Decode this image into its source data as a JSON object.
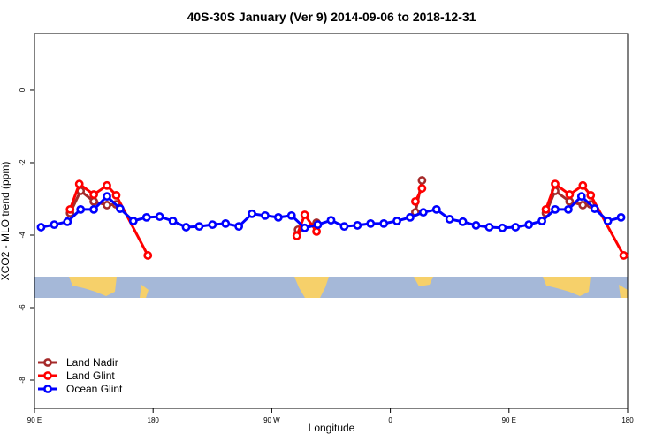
{
  "chart_data": {
    "type": "line",
    "title": "40S-30S January (Ver 9)   2014-09-06 to 2018-12-31",
    "x_label": "Longitude",
    "y_label": "XCO2 - MLO trend (ppm)",
    "xlim": [
      90,
      540
    ],
    "ylim": [
      -8.78,
      1.56
    ],
    "xticks": [
      {
        "value": 90,
        "label": "90 E"
      },
      180,
      {
        "value": 270,
        "label": "90 W"
      },
      {
        "value": 360,
        "label": "0"
      },
      {
        "value": 450,
        "label": "90 E"
      },
      {
        "value": 540,
        "label": "180"
      }
    ],
    "yticks": [
      0,
      -2,
      -4,
      -6,
      -8
    ],
    "legend": "bottom-left",
    "series": [
      {
        "name": "Land Nadir",
        "color": "#a52a2a",
        "x": [
          117,
          125,
          135,
          145,
          152,
          null,
          290,
          304,
          null,
          379,
          384,
          null,
          478,
          485,
          496,
          506,
          512
        ],
        "values": [
          -3.39,
          -2.78,
          -3.07,
          -3.17,
          -3.15,
          null,
          -3.85,
          -3.66,
          null,
          -3.37,
          -2.49,
          null,
          -3.39,
          -2.78,
          -3.07,
          -3.17,
          -3.15
        ]
      },
      {
        "name": "Land Glint",
        "color": "#ff0000",
        "x": [
          117,
          124,
          135,
          145,
          152,
          176,
          null,
          289,
          295,
          304,
          null,
          379,
          384,
          null,
          478,
          485,
          496,
          506,
          512,
          537
        ],
        "values": [
          -3.29,
          -2.59,
          -2.88,
          -2.63,
          -2.9,
          -4.56,
          null,
          -4.02,
          -3.44,
          -3.9,
          null,
          -3.07,
          -2.71,
          null,
          -3.29,
          -2.59,
          -2.88,
          -2.63,
          -2.9,
          -4.56
        ]
      },
      {
        "name": "Ocean Glint",
        "color": "#0000ff",
        "x": [
          95,
          105,
          115,
          125,
          135,
          145,
          155,
          165,
          175,
          185,
          195,
          205,
          215,
          225,
          235,
          245,
          255,
          265,
          275,
          285,
          295,
          305,
          315,
          325,
          335,
          345,
          355,
          365,
          375,
          385,
          395,
          405,
          415,
          425,
          435,
          445,
          455,
          465,
          475,
          485,
          495,
          505,
          515,
          525,
          535
        ],
        "values": [
          -3.78,
          -3.71,
          -3.63,
          -3.29,
          -3.29,
          -2.93,
          -3.27,
          -3.61,
          -3.51,
          -3.49,
          -3.61,
          -3.78,
          -3.76,
          -3.71,
          -3.68,
          -3.76,
          -3.41,
          -3.46,
          -3.51,
          -3.46,
          -3.8,
          -3.71,
          -3.59,
          -3.76,
          -3.73,
          -3.68,
          -3.68,
          -3.61,
          -3.51,
          -3.37,
          -3.29,
          -3.56,
          -3.63,
          -3.73,
          -3.78,
          -3.8,
          -3.78,
          -3.71,
          -3.61,
          -3.29,
          -3.29,
          -2.93,
          -3.27,
          -3.61,
          -3.51
        ]
      }
    ]
  }
}
